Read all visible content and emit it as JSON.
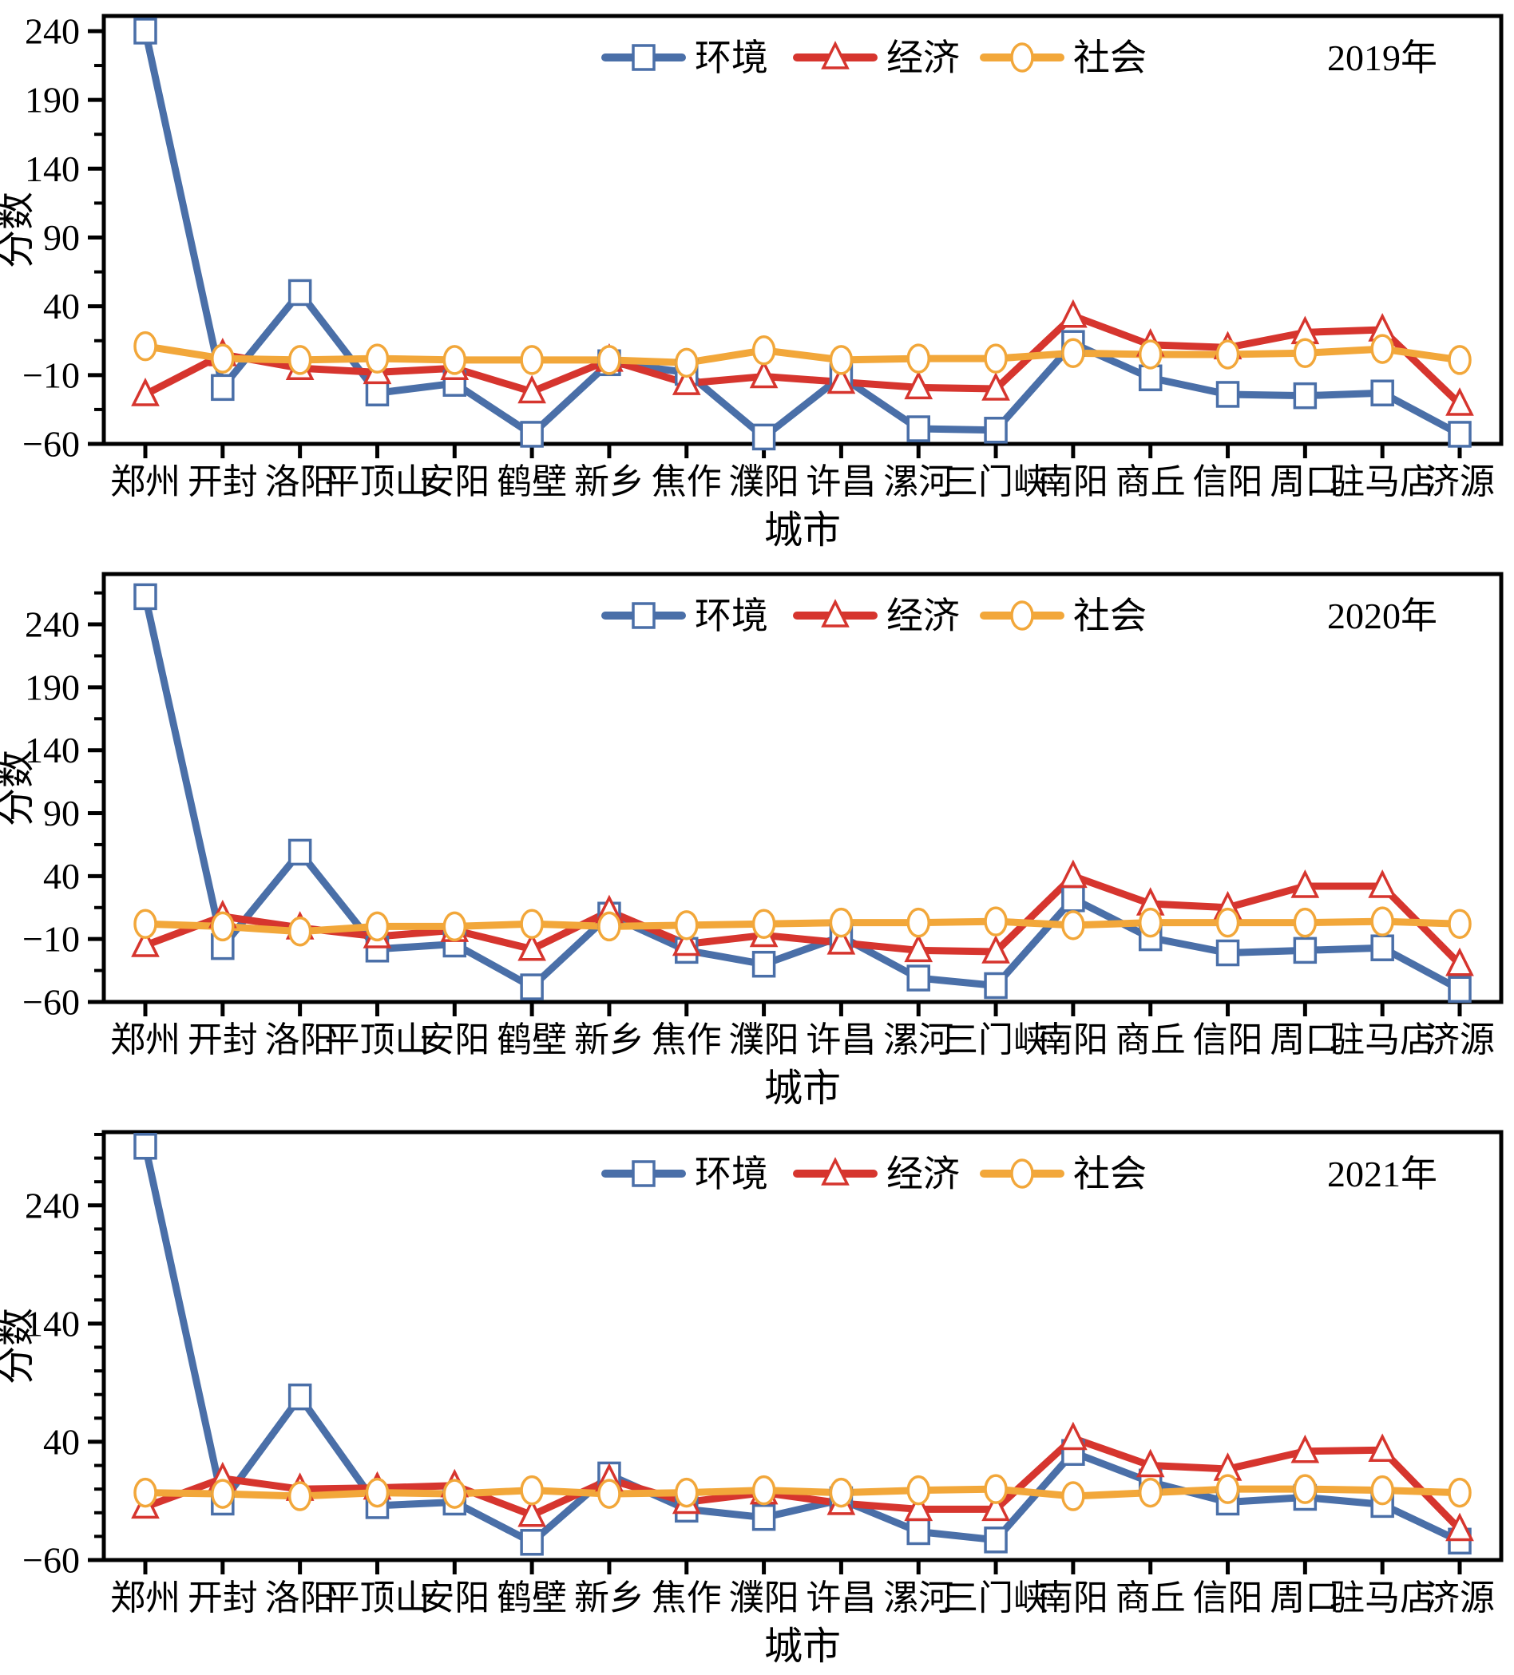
{
  "figure": {
    "background": "#ffffff",
    "axis_color": "#000000",
    "ylabel": "分数",
    "xlabel": "城市"
  },
  "series_meta": [
    {
      "key": "environment",
      "label": "环境",
      "color": "#4a6fa8",
      "marker": "square"
    },
    {
      "key": "economy",
      "label": "经济",
      "color": "#d6352e",
      "marker": "triangle"
    },
    {
      "key": "society",
      "label": "社会",
      "color": "#f2a73a",
      "marker": "circle"
    }
  ],
  "chart_data": [
    {
      "type": "line",
      "title": "2019年",
      "xlabel": "城市",
      "ylabel": "分数",
      "legend_position": "top-center",
      "grid": false,
      "ylim": [
        -60,
        251
      ],
      "y_major_ticks": [
        240,
        190,
        140,
        90,
        40,
        -10,
        -60
      ],
      "y_minor_ticks": [
        215,
        165,
        115,
        65,
        15,
        -35
      ],
      "categories": [
        "郑州",
        "开封",
        "洛阳",
        "平顶山",
        "安阳",
        "鹤壁",
        "新乡",
        "焦作",
        "濮阳",
        "许昌",
        "漯河",
        "三门峡",
        "南阳",
        "商丘",
        "信阳",
        "周口",
        "驻马店",
        "济源"
      ],
      "series": [
        {
          "name": "环境",
          "values": [
            240,
            -19,
            50,
            -23,
            -16,
            -53,
            -1,
            -8,
            -55,
            -11,
            -49,
            -50,
            13,
            -12,
            -24,
            -25,
            -23,
            -53
          ]
        },
        {
          "name": "经济",
          "values": [
            -24,
            5,
            -5,
            -8,
            -5,
            -22,
            1,
            -16,
            -11,
            -15,
            -19,
            -20,
            33,
            12,
            10,
            21,
            23,
            -31
          ]
        },
        {
          "name": "社会",
          "values": [
            11,
            2,
            1,
            2,
            1,
            1,
            1,
            -1,
            8,
            1,
            2,
            2,
            6,
            5,
            5,
            6,
            9,
            1
          ]
        }
      ]
    },
    {
      "type": "line",
      "title": "2020年",
      "xlabel": "城市",
      "ylabel": "分数",
      "legend_position": "top-center",
      "grid": false,
      "ylim": [
        -60,
        280
      ],
      "y_major_ticks": [
        240,
        190,
        140,
        90,
        40,
        -10,
        -60
      ],
      "y_minor_ticks": [
        265,
        215,
        165,
        115,
        65,
        15,
        -35
      ],
      "categories": [
        "郑州",
        "开封",
        "洛阳",
        "平顶山",
        "安阳",
        "鹤壁",
        "新乡",
        "焦作",
        "濮阳",
        "许昌",
        "漯河",
        "三门峡",
        "南阳",
        "商丘",
        "信阳",
        "周口",
        "驻马店",
        "济源"
      ],
      "series": [
        {
          "name": "环境",
          "values": [
            262,
            -16,
            59,
            -18,
            -14,
            -48,
            9,
            -19,
            -30,
            -8,
            -41,
            -47,
            22,
            -9,
            -21,
            -19,
            -17,
            -50
          ]
        },
        {
          "name": "经济",
          "values": [
            -15,
            8,
            -1,
            -8,
            -3,
            -18,
            12,
            -14,
            -7,
            -13,
            -19,
            -20,
            40,
            18,
            15,
            32,
            32,
            -30
          ]
        },
        {
          "name": "社会",
          "values": [
            2,
            0,
            -4,
            0,
            0,
            2,
            0,
            1,
            2,
            3,
            3,
            4,
            1,
            3,
            3,
            3,
            4,
            2
          ]
        }
      ]
    },
    {
      "type": "line",
      "title": "2021年",
      "xlabel": "城市",
      "ylabel": "分数",
      "legend_position": "top-center",
      "grid": false,
      "ylim": [
        -60,
        302
      ],
      "y_major_ticks": [
        240,
        140,
        40,
        -60
      ],
      "y_minor_ticks": [
        300,
        280,
        260,
        220,
        200,
        180,
        160,
        120,
        100,
        80,
        60,
        20,
        0,
        -20,
        -40
      ],
      "categories": [
        "郑州",
        "开封",
        "洛阳",
        "平顶山",
        "安阳",
        "鹤壁",
        "新乡",
        "焦作",
        "濮阳",
        "许昌",
        "漯河",
        "三门峡",
        "南阳",
        "商丘",
        "信阳",
        "周口",
        "驻马店",
        "济源"
      ],
      "series": [
        {
          "name": "环境",
          "values": [
            290,
            -11,
            78,
            -14,
            -11,
            -45,
            12,
            -17,
            -24,
            -9,
            -36,
            -43,
            31,
            6,
            -11,
            -7,
            -13,
            -44
          ]
        },
        {
          "name": "经济",
          "values": [
            -15,
            9,
            0,
            1,
            3,
            -22,
            8,
            -11,
            -3,
            -12,
            -17,
            -17,
            43,
            20,
            17,
            32,
            33,
            -34
          ]
        },
        {
          "name": "社会",
          "values": [
            -3,
            -4,
            -6,
            -3,
            -4,
            -1,
            -4,
            -3,
            -1,
            -3,
            -1,
            0,
            -6,
            -3,
            0,
            0,
            -1,
            -3
          ]
        }
      ]
    }
  ]
}
